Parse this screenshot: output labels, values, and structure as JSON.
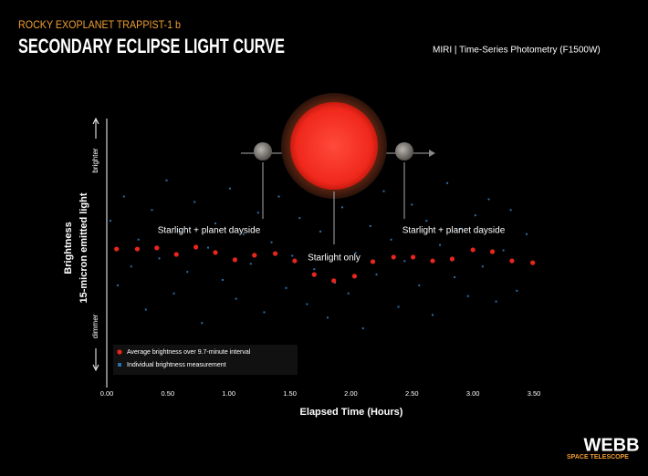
{
  "chart_data": {
    "type": "scatter",
    "kicker": "ROCKY EXOPLANET TRAPPIST-1 b",
    "title": "SECONDARY ECLIPSE LIGHT CURVE",
    "subtitle": "MIRI | Time-Series Photometry (F1500W)",
    "xlabel": "Elapsed Time (Hours)",
    "ylabel": "Brightness",
    "ylabel_sub": "15-micron emitted light",
    "y_top_label": "brighter",
    "y_bottom_label": "dimmer",
    "annotations": [
      "Starlight + planet dayside",
      "Starlight only",
      "Starlight + planet dayside"
    ],
    "logo": "WEBB",
    "logo_sub": "SPACE TELESCOPE",
    "xlim": [
      0,
      3.5
    ],
    "ylim": [
      0,
      100
    ],
    "xticks": [
      {
        "value": 0,
        "label": "0.00"
      },
      {
        "value": 0.5,
        "label": "0.50"
      },
      {
        "value": 1,
        "label": "1.00"
      },
      {
        "value": 1.5,
        "label": "1.50"
      },
      {
        "value": 2,
        "label": "2.00"
      },
      {
        "value": 2.5,
        "label": "2.50"
      },
      {
        "value": 3,
        "label": "3.00"
      },
      {
        "value": 3.5,
        "label": "3.50"
      }
    ],
    "series": [
      {
        "name": "Individual brightness measurement",
        "color": "#2a6fa8",
        "x": [
          0.03,
          0.09,
          0.14,
          0.2,
          0.26,
          0.32,
          0.37,
          0.43,
          0.49,
          0.55,
          0.6,
          0.66,
          0.72,
          0.78,
          0.83,
          0.89,
          0.95,
          1.01,
          1.06,
          1.12,
          1.18,
          1.24,
          1.29,
          1.35,
          1.41,
          1.47,
          1.52,
          1.58,
          1.64,
          1.7,
          1.75,
          1.81,
          1.87,
          1.93,
          1.98,
          2.04,
          2.1,
          2.16,
          2.21,
          2.27,
          2.33,
          2.39,
          2.44,
          2.5,
          2.56,
          2.62,
          2.67,
          2.73,
          2.79,
          2.85,
          2.9,
          2.96,
          3.02,
          3.08,
          3.13,
          3.19,
          3.25,
          3.31,
          3.36,
          3.44
        ],
        "values": [
          62,
          38,
          71,
          45,
          55,
          29,
          66,
          48,
          77,
          35,
          58,
          43,
          69,
          24,
          52,
          61,
          40,
          74,
          33,
          57,
          46,
          65,
          28,
          54,
          71,
          37,
          49,
          63,
          31,
          44,
          58,
          26,
          39,
          67,
          35,
          50,
          22,
          60,
          42,
          73,
          55,
          30,
          47,
          68,
          38,
          62,
          27,
          53,
          76,
          41,
          59,
          34,
          64,
          45,
          70,
          32,
          51,
          66,
          36,
          57
        ]
      },
      {
        "name": "Average brightness over 9.7-minute interval",
        "color": "#e8261c",
        "x": [
          0.08,
          0.25,
          0.41,
          0.57,
          0.73,
          0.89,
          1.05,
          1.21,
          1.38,
          1.54,
          1.7,
          1.86,
          2.03,
          2.18,
          2.35,
          2.51,
          2.67,
          2.83,
          3.0,
          3.16,
          3.32,
          3.49
        ],
        "values": [
          51.5,
          51.5,
          51.9,
          49.5,
          52.2,
          50.2,
          47.5,
          49.2,
          49.8,
          47.1,
          42.0,
          39.7,
          41.4,
          46.8,
          48.5,
          48.5,
          47.1,
          47.8,
          51.2,
          50.5,
          47.1,
          46.4
        ]
      }
    ]
  }
}
